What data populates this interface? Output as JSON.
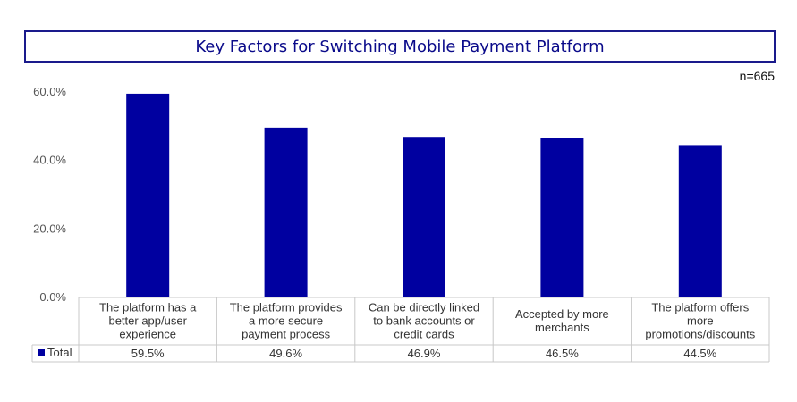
{
  "chart_data": {
    "type": "bar",
    "title": "Key Factors for Switching Mobile Payment Platform",
    "note": "n=665",
    "categories": [
      [
        "The platform has a",
        "better app/user",
        "experience"
      ],
      [
        "The platform provides",
        "a more secure",
        "payment process"
      ],
      [
        "Can be directly linked",
        "to bank accounts or",
        "credit cards"
      ],
      [
        "Accepted by more",
        "merchants"
      ],
      [
        "The platform offers",
        "more",
        "promotions/discounts"
      ]
    ],
    "series": [
      {
        "name": "Total",
        "values": [
          59.5,
          49.6,
          46.9,
          46.5,
          44.5
        ]
      }
    ],
    "value_labels": [
      "59.5%",
      "49.6%",
      "46.9%",
      "46.5%",
      "44.5%"
    ],
    "yticks": [
      "0.0%",
      "20.0%",
      "40.0%",
      "60.0%"
    ],
    "ylim": [
      0,
      60
    ],
    "grid": false,
    "legend": "data-table",
    "color": "#0000a0"
  }
}
